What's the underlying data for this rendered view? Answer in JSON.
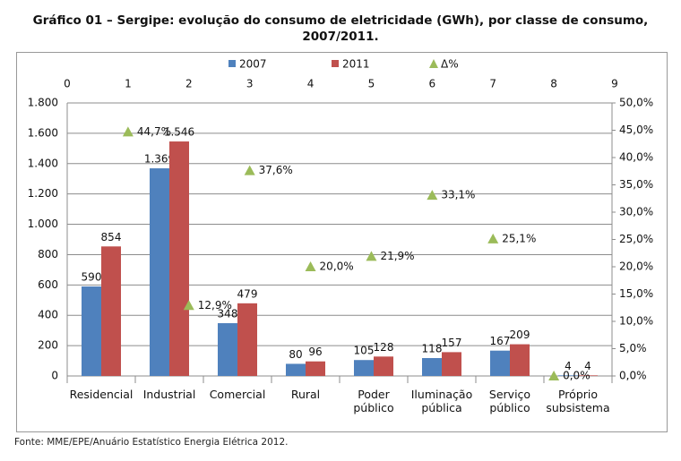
{
  "chart_data": {
    "type": "bar",
    "title": "Gráfico 01 – Sergipe: evolução do consumo de eletricidade (GWh), por classe de consumo, 2007/2011.",
    "source": "Fonte: MME/EPE/Anuário Estatístico Energia Elétrica 2012.",
    "categories": [
      "Residencial",
      "Industrial",
      "Comercial",
      "Rural",
      "Poder público",
      "Iluminação pública",
      "Serviço público",
      "Próprio subsistema"
    ],
    "series": [
      {
        "name": "2007",
        "color": "#4f81bd",
        "values": [
          590,
          1369,
          348,
          80,
          105,
          118,
          167,
          4
        ],
        "value_labels": [
          "590",
          "1.369",
          "348",
          "80",
          "105",
          "118",
          "167",
          "4"
        ]
      },
      {
        "name": "2011",
        "color": "#c0504d",
        "values": [
          854,
          1546,
          479,
          96,
          128,
          157,
          209,
          4
        ],
        "value_labels": [
          "854",
          "1.546",
          "479",
          "96",
          "128",
          "157",
          "209",
          "4"
        ]
      },
      {
        "name": "Δ%",
        "type": "scatter",
        "axis": "y2",
        "color": "#9bbb59",
        "x": [
          1,
          2,
          3,
          4,
          5,
          6,
          7,
          8
        ],
        "values": [
          44.7,
          12.9,
          37.6,
          20.0,
          21.9,
          33.1,
          25.1,
          0.0
        ],
        "value_labels": [
          "44,7%",
          "12,9%",
          "37,6%",
          "20,0%",
          "21,9%",
          "33,1%",
          "25,1%",
          "0,0%"
        ]
      }
    ],
    "ylim": [
      0,
      1800
    ],
    "yticks": [
      0,
      200,
      400,
      600,
      800,
      {
        "value": 1000,
        "label": "1.000"
      },
      {
        "value": 1200,
        "label": "1.200"
      },
      {
        "value": 1400,
        "label": "1.400"
      },
      {
        "value": 1600,
        "label": "1.600"
      },
      {
        "value": 1800,
        "label": "1.800"
      }
    ],
    "y2lim": [
      0,
      50
    ],
    "y2ticks": [
      {
        "value": 0,
        "label": "0,0%"
      },
      {
        "value": 5,
        "label": "5,0%"
      },
      {
        "value": 10,
        "label": "10,0%"
      },
      {
        "value": 15,
        "label": "15,0%"
      },
      {
        "value": 20,
        "label": "20,0%"
      },
      {
        "value": 25,
        "label": "25,0%"
      },
      {
        "value": 30,
        "label": "30,0%"
      },
      {
        "value": 35,
        "label": "35,0%"
      },
      {
        "value": 40,
        "label": "40,0%"
      },
      {
        "value": 45,
        "label": "45,0%"
      },
      {
        "value": 50,
        "label": "50,0%"
      }
    ],
    "x2lim": [
      0,
      9
    ],
    "x2ticks": [
      0,
      1,
      2,
      3,
      4,
      5,
      6,
      7,
      8,
      9
    ],
    "grid": true,
    "legend": "top"
  }
}
